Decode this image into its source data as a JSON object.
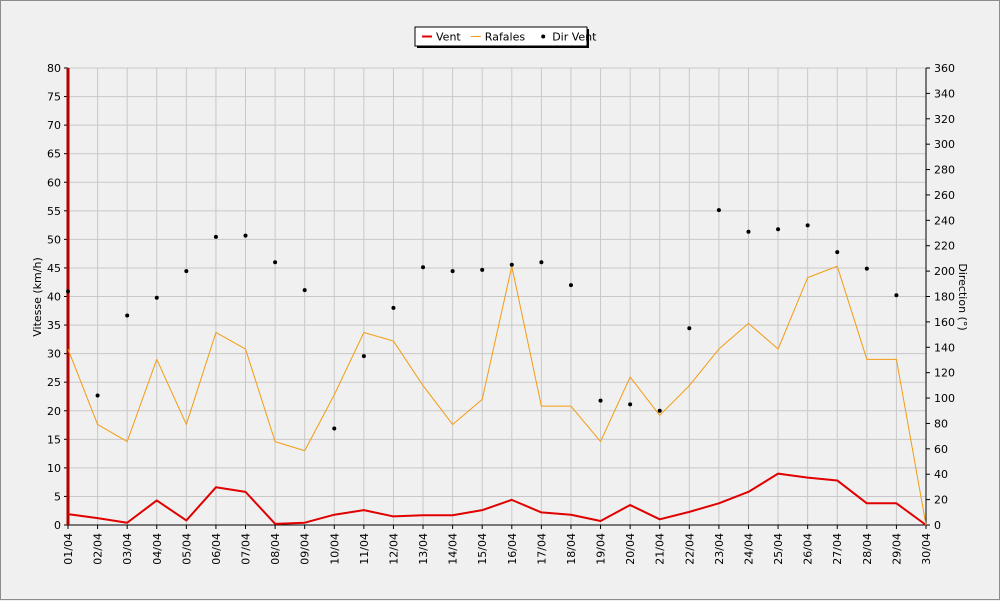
{
  "chart_data": {
    "type": "line",
    "title": "",
    "x": [
      "01/04",
      "02/04",
      "03/04",
      "04/04",
      "05/04",
      "06/04",
      "07/04",
      "08/04",
      "09/04",
      "10/04",
      "11/04",
      "12/04",
      "13/04",
      "14/04",
      "15/04",
      "16/04",
      "17/04",
      "18/04",
      "19/04",
      "20/04",
      "21/04",
      "22/04",
      "23/04",
      "24/04",
      "25/04",
      "26/04",
      "27/04",
      "28/04",
      "29/04",
      "30/04"
    ],
    "ylabel": "Vitesse (km/h)",
    "ylim": [
      0,
      80
    ],
    "yticks": [
      0,
      5,
      10,
      15,
      20,
      25,
      30,
      35,
      40,
      45,
      50,
      55,
      60,
      65,
      70,
      75,
      80
    ],
    "y2label": "Direction (°)",
    "y2lim": [
      0,
      360
    ],
    "y2ticks": [
      0,
      20,
      40,
      60,
      80,
      100,
      120,
      140,
      160,
      180,
      200,
      220,
      240,
      260,
      280,
      300,
      320,
      340,
      360
    ],
    "grid": true,
    "legend_position": "top-center",
    "series": [
      {
        "name": "Vent",
        "axis": "left",
        "style": "line",
        "color": "#e00000",
        "values": [
          1.9,
          1.2,
          0.4,
          4.3,
          0.8,
          6.6,
          5.8,
          0.2,
          0.4,
          1.8,
          2.6,
          1.5,
          1.7,
          1.7,
          2.6,
          4.4,
          2.2,
          1.8,
          0.7,
          3.5,
          1.0,
          2.3,
          3.8,
          5.8,
          9.0,
          8.3,
          7.8,
          3.8,
          3.8,
          0.0
        ]
      },
      {
        "name": "Rafales",
        "axis": "left",
        "style": "line",
        "color": "#f39c12",
        "values": [
          30.8,
          17.6,
          14.6,
          29.0,
          17.6,
          33.7,
          30.8,
          14.6,
          13.0,
          22.8,
          33.7,
          32.2,
          24.4,
          17.6,
          22.0,
          45.3,
          20.8,
          20.8,
          14.6,
          25.9,
          19.2,
          24.4,
          30.8,
          35.3,
          30.8,
          43.3,
          45.3,
          29.0,
          29.0,
          0.0
        ]
      },
      {
        "name": "Dir Vent",
        "axis": "right",
        "style": "points",
        "color": "#000000",
        "values": [
          184,
          102,
          165,
          179,
          200,
          227,
          228,
          207,
          185,
          76,
          133,
          171,
          203,
          200,
          201,
          205,
          207,
          189,
          98,
          95,
          90,
          155,
          248,
          231,
          233,
          236,
          215,
          202,
          181,
          null
        ]
      }
    ]
  }
}
